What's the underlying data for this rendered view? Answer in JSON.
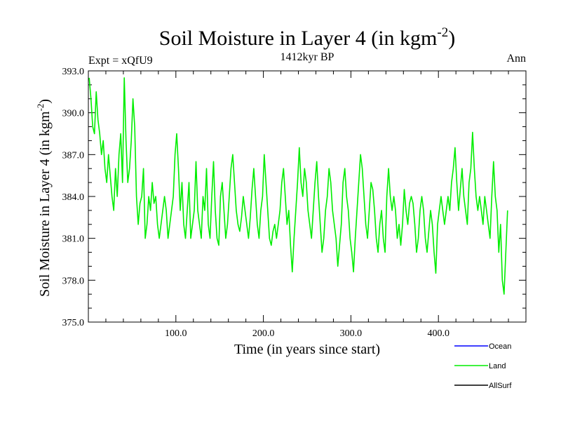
{
  "chart_data": {
    "type": "line",
    "title": "Soil Moisture in Layer 4 (in kgm",
    "title_sup": "-2",
    "title_close": ")",
    "experiment": "Expt = xQfU9",
    "period": "1412kyr BP",
    "season": "Ann",
    "xlabel": "Time (in years since start)",
    "ylabel": "Soil Moisture in Layer 4 (in kgm",
    "ylabel_sup": "-2",
    "ylabel_close": ")",
    "xlim": [
      0,
      500
    ],
    "ylim": [
      375,
      393
    ],
    "x_ticks": [
      100,
      200,
      300,
      400
    ],
    "x_tick_labels": [
      "100.0",
      "200.0",
      "300.0",
      "400.0"
    ],
    "y_ticks": [
      375,
      378,
      381,
      384,
      387,
      390,
      393
    ],
    "y_tick_labels": [
      "375.0",
      "378.0",
      "381.0",
      "384.0",
      "387.0",
      "390.0",
      "393.0"
    ],
    "legend": [
      {
        "name": "Ocean",
        "color": "#0000ff"
      },
      {
        "name": "Land",
        "color": "#00ee00"
      },
      {
        "name": "AllSurf",
        "color": "#000000"
      }
    ],
    "series": [
      {
        "name": "Land",
        "color": "#00ee00",
        "x_start": 1,
        "x_step": 2,
        "values": [
          392.5,
          391.0,
          389.0,
          388.5,
          391.5,
          389.5,
          388.5,
          387.0,
          388.0,
          386.0,
          385.0,
          387.0,
          385.5,
          384.0,
          383.0,
          386.0,
          384.0,
          387.0,
          388.5,
          385.0,
          392.5,
          388.0,
          385.0,
          386.0,
          388.0,
          391.0,
          389.0,
          384.0,
          382.0,
          383.5,
          384.0,
          386.0,
          381.0,
          382.0,
          384.0,
          383.0,
          385.0,
          383.5,
          384.0,
          382.0,
          381.0,
          382.0,
          383.0,
          384.0,
          383.0,
          381.0,
          382.0,
          383.0,
          384.0,
          387.0,
          388.5,
          386.0,
          383.0,
          385.0,
          382.0,
          381.0,
          383.0,
          385.0,
          381.0,
          382.0,
          383.0,
          386.5,
          383.0,
          382.0,
          381.0,
          384.0,
          383.0,
          386.0,
          382.0,
          381.0,
          384.0,
          386.5,
          383.0,
          381.0,
          380.5,
          384.0,
          385.0,
          383.0,
          381.0,
          382.0,
          384.0,
          386.0,
          387.0,
          385.0,
          383.0,
          382.0,
          381.5,
          382.5,
          384.0,
          383.0,
          382.0,
          381.0,
          382.5,
          384.5,
          386.0,
          384.0,
          382.0,
          381.0,
          383.0,
          384.0,
          387.0,
          385.0,
          383.0,
          381.0,
          380.5,
          381.5,
          382.0,
          381.0,
          382.0,
          383.0,
          385.0,
          386.0,
          384.0,
          382.0,
          383.0,
          380.5,
          378.6,
          381.0,
          383.0,
          385.0,
          387.5,
          385.0,
          384.0,
          386.0,
          385.0,
          383.0,
          382.0,
          381.0,
          383.0,
          385.0,
          386.5,
          384.0,
          382.0,
          380.0,
          381.0,
          383.0,
          384.0,
          386.0,
          385.0,
          383.0,
          382.0,
          381.0,
          379.0,
          380.5,
          382.0,
          385.0,
          386.0,
          384.0,
          383.0,
          381.0,
          380.0,
          378.6,
          381.0,
          383.0,
          385.0,
          387.0,
          386.0,
          384.0,
          382.0,
          381.0,
          383.0,
          385.0,
          384.5,
          383.0,
          381.0,
          380.0,
          382.0,
          383.0,
          381.0,
          380.0,
          384.0,
          386.0,
          384.0,
          383.0,
          384.0,
          383.0,
          381.0,
          382.0,
          380.5,
          382.0,
          384.5,
          383.0,
          382.0,
          383.5,
          384.0,
          383.5,
          382.0,
          380.0,
          381.0,
          383.0,
          384.0,
          383.0,
          381.0,
          380.0,
          381.5,
          383.0,
          382.0,
          380.0,
          378.5,
          382.0,
          383.0,
          384.0,
          383.0,
          382.0,
          383.0,
          384.0,
          383.0,
          385.0,
          386.0,
          387.5,
          385.0,
          383.0,
          384.5,
          386.0,
          384.0,
          383.0,
          382.0,
          385.0,
          386.0,
          388.6,
          386.0,
          384.0,
          383.0,
          384.0,
          383.0,
          382.0,
          384.0,
          383.0,
          382.0,
          381.0,
          384.0,
          386.5,
          384.0,
          383.0,
          380.0,
          382.0,
          378.0,
          377.0,
          380.0,
          383.0
        ]
      },
      {
        "name": "Ocean",
        "color": "#0000ff",
        "values": []
      },
      {
        "name": "AllSurf",
        "color": "#000000",
        "values": []
      }
    ]
  }
}
